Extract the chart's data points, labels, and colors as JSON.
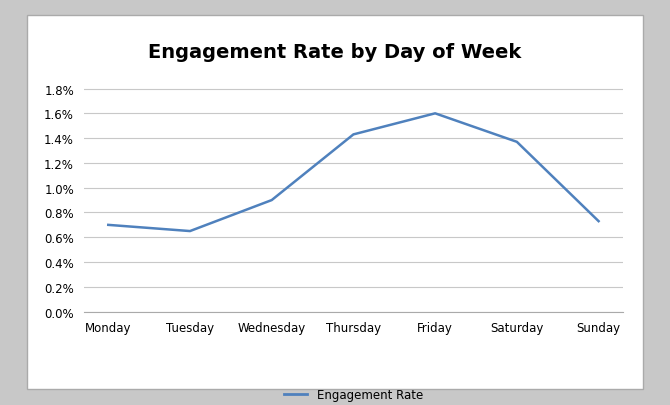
{
  "days": [
    "Monday",
    "Tuesday",
    "Wednesday",
    "Thursday",
    "Friday",
    "Saturday",
    "Sunday"
  ],
  "values": [
    0.007,
    0.0065,
    0.009,
    0.0143,
    0.016,
    0.0137,
    0.0073
  ],
  "line_color": "#4f81bd",
  "line_width": 1.8,
  "title": "Engagement Rate by Day of Week",
  "title_fontsize": 14,
  "title_fontweight": "bold",
  "ylim": [
    0,
    0.019
  ],
  "yticks": [
    0.0,
    0.002,
    0.004,
    0.006,
    0.008,
    0.01,
    0.012,
    0.014,
    0.016,
    0.018
  ],
  "grid_color": "#c8c8c8",
  "grid_linewidth": 0.8,
  "legend_label": "Engagement Rate",
  "background_color": "#ffffff",
  "outer_background": "#c8c8c8",
  "spine_color": "#aaaaaa"
}
